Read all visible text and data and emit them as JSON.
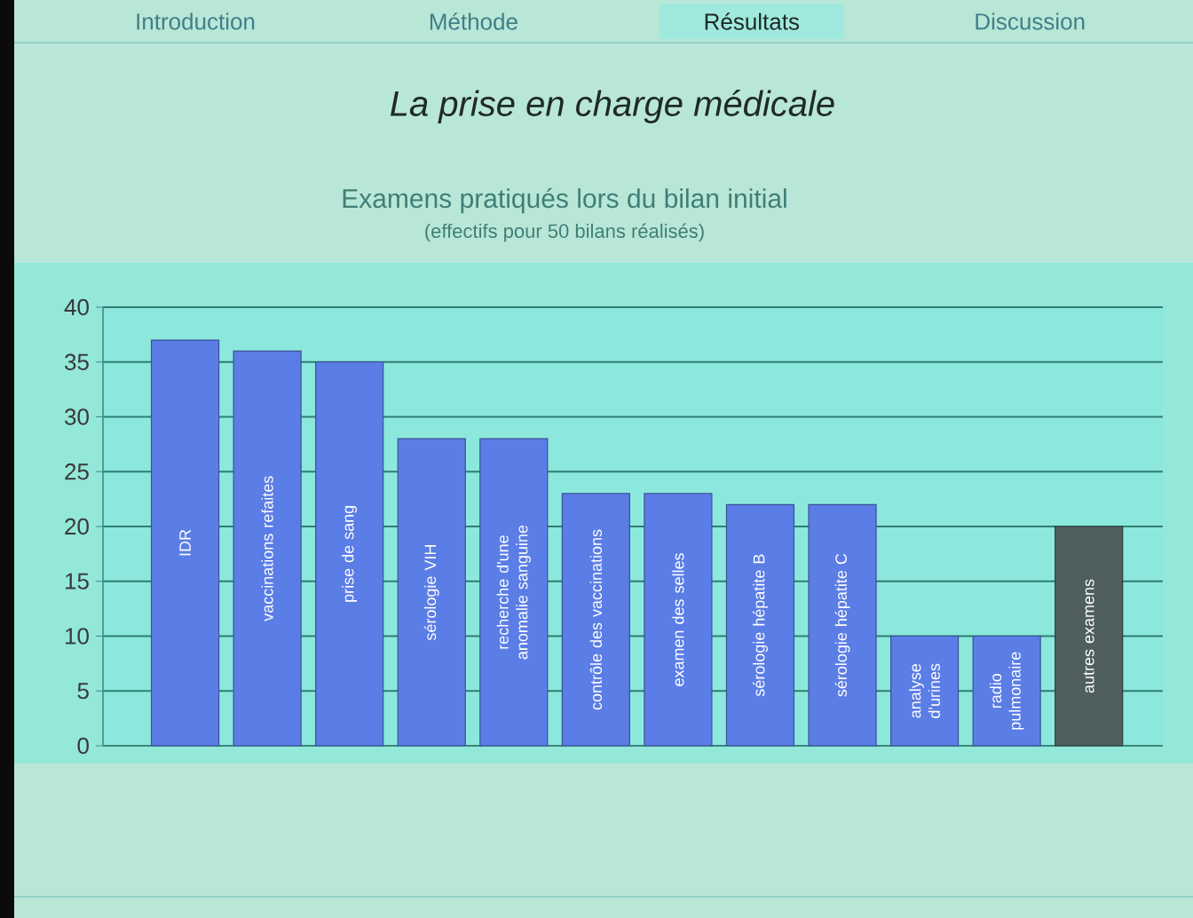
{
  "chart_data": {
    "type": "bar",
    "title": "La prise en charge médicale",
    "subtitle": "Examens pratiqués lors du bilan initial",
    "annotations": [
      "(effectifs pour 50 bilans réalisés)",
      "Introduction",
      "Méthode",
      "Résultats",
      "Discussion"
    ],
    "categories": [
      "IDR",
      "vaccinations refaites",
      "prise de sang",
      "sérologie VIH",
      "recherche d'une anomalie sanguine",
      "contrôle des vaccinations",
      "examen des selles",
      "sérologie hépatite B",
      "sérologie hépatite C",
      "analyse d'urines",
      "radio pulmonaire",
      "autres examens"
    ],
    "values": [
      37,
      36,
      35,
      28,
      28,
      23,
      23,
      22,
      22,
      10,
      10,
      20
    ],
    "colors": [
      "#5b7de6",
      "#5b7de6",
      "#5b7de6",
      "#5b7de6",
      "#5b7de6",
      "#5b7de6",
      "#5b7de6",
      "#5b7de6",
      "#5b7de6",
      "#5b7de6",
      "#5b7de6",
      "#4f5e5e"
    ],
    "ylim": [
      0,
      40
    ],
    "yticks": [
      0,
      5,
      10,
      15,
      20,
      25,
      30,
      35,
      40
    ],
    "grid": "y"
  }
}
